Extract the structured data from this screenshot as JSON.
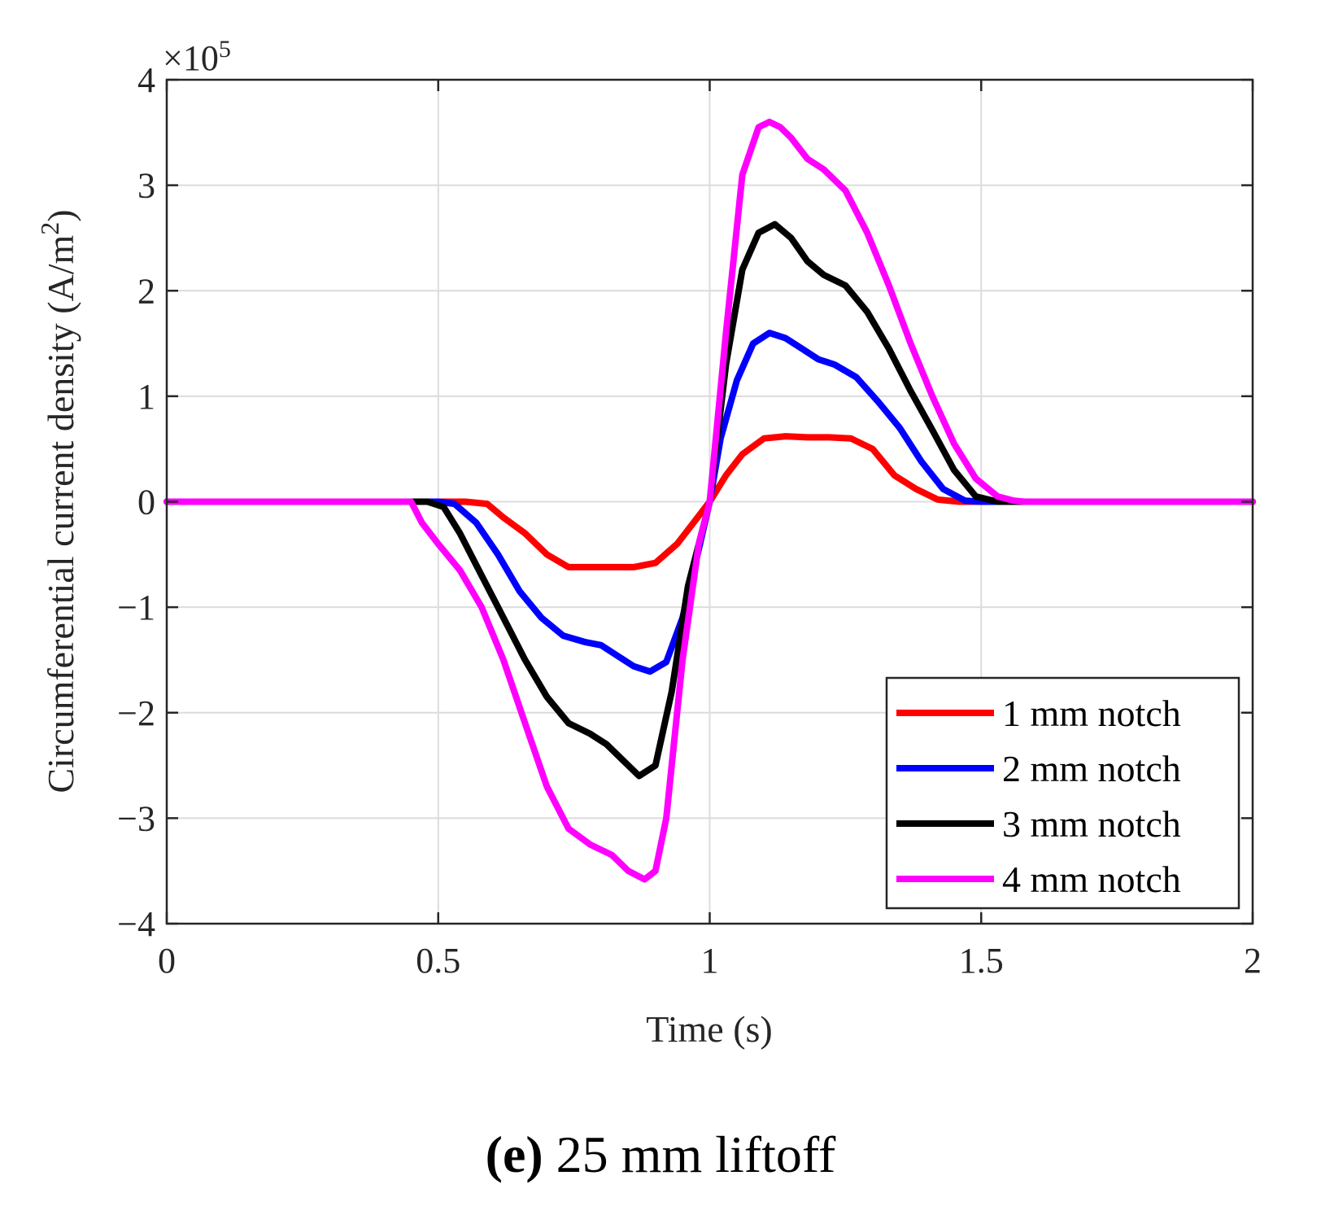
{
  "chart_data": {
    "type": "line",
    "title": "",
    "xlabel": "Time (s)",
    "ylabel": "Circumferential current density (A/m",
    "ylabel_sup": "2",
    "ylabel_end": ")",
    "exponent_label": "×10",
    "exponent_power": "5",
    "xlim": [
      0,
      2
    ],
    "ylim": [
      -4,
      4
    ],
    "xticks": [
      0,
      0.5,
      1,
      1.5,
      2
    ],
    "xtick_labels": [
      "0",
      "0.5",
      "1",
      "1.5",
      "2"
    ],
    "yticks": [
      -4,
      -3,
      -2,
      -1,
      0,
      1,
      2,
      3,
      4
    ],
    "ytick_labels": [
      "−4",
      "−3",
      "−2",
      "−1",
      "0",
      "1",
      "2",
      "3",
      "4"
    ],
    "grid": true,
    "legend_position": "bottom-right",
    "series": [
      {
        "name": "1 mm notch",
        "color": "#ff0000",
        "x": [
          0,
          0.45,
          0.55,
          0.59,
          0.62,
          0.66,
          0.7,
          0.74,
          0.78,
          0.82,
          0.86,
          0.9,
          0.94,
          0.97,
          1.0,
          1.03,
          1.06,
          1.1,
          1.14,
          1.18,
          1.22,
          1.26,
          1.3,
          1.34,
          1.38,
          1.42,
          1.46,
          1.5,
          2.0
        ],
        "values": [
          0,
          0,
          0,
          -0.02,
          -0.15,
          -0.3,
          -0.5,
          -0.62,
          -0.62,
          -0.62,
          -0.62,
          -0.58,
          -0.4,
          -0.2,
          0,
          0.25,
          0.45,
          0.6,
          0.62,
          0.61,
          0.61,
          0.6,
          0.5,
          0.25,
          0.12,
          0.02,
          0,
          0,
          0
        ]
      },
      {
        "name": "2 mm notch",
        "color": "#0000ff",
        "x": [
          0,
          0.5,
          0.53,
          0.57,
          0.61,
          0.65,
          0.69,
          0.73,
          0.77,
          0.8,
          0.83,
          0.86,
          0.89,
          0.92,
          0.95,
          0.98,
          1.0,
          1.02,
          1.05,
          1.08,
          1.11,
          1.14,
          1.17,
          1.2,
          1.23,
          1.27,
          1.31,
          1.35,
          1.39,
          1.43,
          1.47,
          1.5,
          2.0
        ],
        "values": [
          0,
          0,
          -0.02,
          -0.2,
          -0.5,
          -0.85,
          -1.1,
          -1.27,
          -1.33,
          -1.36,
          -1.46,
          -1.56,
          -1.61,
          -1.52,
          -1.1,
          -0.45,
          0,
          0.6,
          1.15,
          1.5,
          1.6,
          1.55,
          1.45,
          1.35,
          1.3,
          1.18,
          0.95,
          0.7,
          0.38,
          0.12,
          0.01,
          0,
          0
        ]
      },
      {
        "name": "3 mm notch",
        "color": "#000000",
        "x": [
          0,
          0.48,
          0.51,
          0.54,
          0.58,
          0.62,
          0.66,
          0.7,
          0.74,
          0.78,
          0.81,
          0.84,
          0.87,
          0.9,
          0.93,
          0.96,
          1.0,
          1.03,
          1.06,
          1.09,
          1.12,
          1.15,
          1.18,
          1.21,
          1.25,
          1.29,
          1.33,
          1.37,
          1.41,
          1.45,
          1.49,
          1.53,
          2.0
        ],
        "values": [
          0,
          0,
          -0.05,
          -0.3,
          -0.7,
          -1.1,
          -1.5,
          -1.85,
          -2.1,
          -2.2,
          -2.3,
          -2.45,
          -2.6,
          -2.5,
          -1.8,
          -0.8,
          0,
          1.3,
          2.2,
          2.55,
          2.63,
          2.5,
          2.28,
          2.15,
          2.05,
          1.8,
          1.45,
          1.05,
          0.68,
          0.3,
          0.05,
          0,
          0
        ]
      },
      {
        "name": "4 mm notch",
        "color": "#ff00ff",
        "x": [
          0,
          0.45,
          0.47,
          0.5,
          0.54,
          0.58,
          0.62,
          0.66,
          0.7,
          0.74,
          0.78,
          0.82,
          0.85,
          0.88,
          0.9,
          0.92,
          0.95,
          0.98,
          1.0,
          1.03,
          1.06,
          1.09,
          1.11,
          1.13,
          1.15,
          1.18,
          1.21,
          1.25,
          1.29,
          1.33,
          1.37,
          1.41,
          1.45,
          1.49,
          1.53,
          1.56,
          1.58,
          2.0
        ],
        "values": [
          0,
          0,
          -0.2,
          -0.4,
          -0.65,
          -1.0,
          -1.5,
          -2.1,
          -2.7,
          -3.1,
          -3.25,
          -3.35,
          -3.5,
          -3.58,
          -3.5,
          -3.0,
          -1.5,
          -0.4,
          0,
          1.6,
          3.1,
          3.55,
          3.6,
          3.55,
          3.45,
          3.25,
          3.15,
          2.95,
          2.55,
          2.05,
          1.5,
          1.0,
          0.55,
          0.22,
          0.05,
          0.01,
          0,
          0
        ]
      }
    ]
  },
  "caption": {
    "label": "(e)",
    "text": "25 mm liftoff"
  }
}
